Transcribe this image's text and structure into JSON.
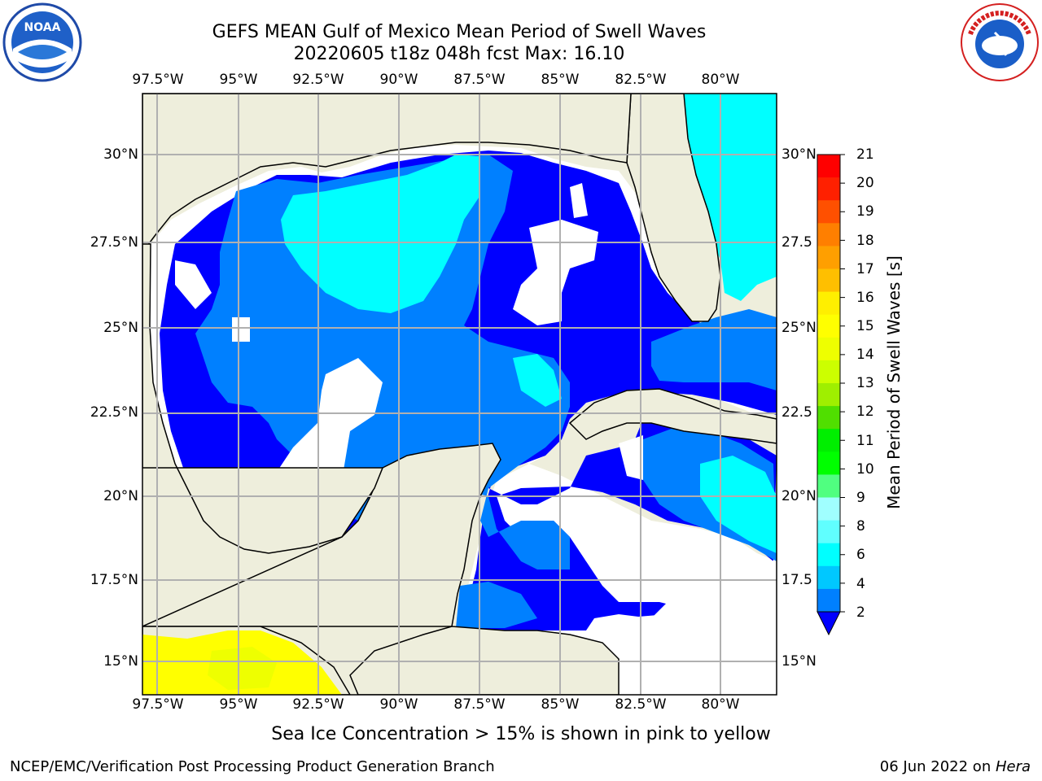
{
  "header": {
    "title_line1": "GEFS MEAN Gulf of Mexico Mean Period of Swell Waves",
    "title_line2": "20220605 t18z 048h fcst   Max: 16.10"
  },
  "logos": {
    "noaa": {
      "name": "noaa-logo",
      "text": "NOAA"
    },
    "nws": {
      "name": "nws-logo",
      "text": "NATIONAL WEATHER SERVICE"
    }
  },
  "map": {
    "lon_ticks": [
      "97.5°W",
      "95°W",
      "92.5°W",
      "90°W",
      "87.5°W",
      "85°W",
      "82.5°W",
      "80°W"
    ],
    "lat_ticks_left": [
      "30°N",
      "27.5°N",
      "25°N",
      "22.5°N",
      "20°N",
      "17.5°N",
      "15°N"
    ],
    "lat_ticks_right": [
      "30°N",
      "27.5",
      "25°N",
      "22.5",
      "20°N",
      "17.5",
      "15°N"
    ],
    "colors": {
      "land": "#eeeedc",
      "ocean_missing": "#ffffff",
      "level_2_4": "#0000ff",
      "level_4_6": "#0080ff",
      "level_6_8": "#00ffff",
      "ice_yellow": "#ffff00",
      "gridline": "#b0b0b0"
    }
  },
  "colorbar": {
    "title": "Mean Period of Swell Waves [s]",
    "labels": [
      "21",
      "20",
      "19",
      "18",
      "17",
      "16",
      "15",
      "14",
      "13",
      "12",
      "11",
      "10",
      "9",
      "8",
      "6",
      "4",
      "2"
    ],
    "colors": [
      "#ff0000",
      "#ff2000",
      "#ff5000",
      "#ff7f00",
      "#ff9f00",
      "#ffbf00",
      "#ffef00",
      "#ffff00",
      "#eeff00",
      "#ccff00",
      "#9fef00",
      "#50df00",
      "#00ef00",
      "#00ff00",
      "#50ff80",
      "#a0ffff",
      "#60ffff",
      "#00ffff",
      "#00c8ff",
      "#0080ff"
    ],
    "extend_color": "#0000ff"
  },
  "note": "Sea Ice Concentration > 15% is shown in pink to yellow",
  "footer": {
    "left": "NCEP/EMC/Verification Post Processing Product Generation Branch",
    "right_date": "06 Jun 2022 on ",
    "right_host": "Hera"
  }
}
